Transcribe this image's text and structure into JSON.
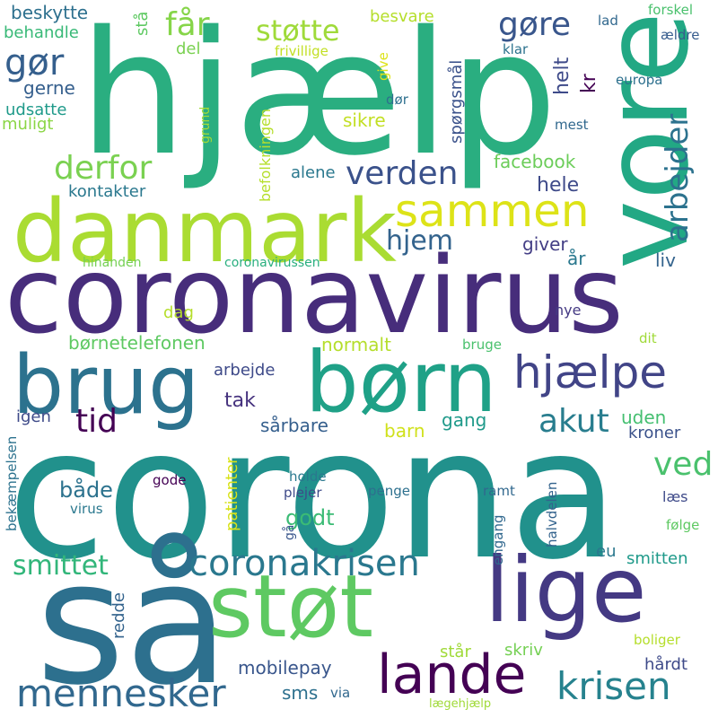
{
  "words": [
    {
      "text": "corona",
      "color": "#21918c"
    },
    {
      "text": "hjælp",
      "color": "#2aae80"
    },
    {
      "text": "coronavirus",
      "color": "#472d7b"
    },
    {
      "text": "så",
      "color": "#2d708e"
    },
    {
      "text": "danmark",
      "color": "#aadc32"
    },
    {
      "text": "vore",
      "color": "#22a884"
    },
    {
      "text": "brug",
      "color": "#2c728e"
    },
    {
      "text": "børn",
      "color": "#1fa187"
    },
    {
      "text": "lige",
      "color": "#443983"
    },
    {
      "text": "støt",
      "color": "#5ec962"
    },
    {
      "text": "lande",
      "color": "#440154"
    },
    {
      "text": "mennesker",
      "color": "#31688e"
    },
    {
      "text": "coronakrisen",
      "color": "#2a788e"
    },
    {
      "text": "hjælpe",
      "color": "#414487"
    },
    {
      "text": "sammen",
      "color": "#dde318"
    },
    {
      "text": "krisen",
      "color": "#26828e"
    },
    {
      "text": "verden",
      "color": "#3b528b"
    },
    {
      "text": "gøre",
      "color": "#39568c"
    },
    {
      "text": "gør",
      "color": "#355f8d"
    },
    {
      "text": "derfor",
      "color": "#7ad151"
    },
    {
      "text": "arbejder",
      "color": "#2c728e"
    },
    {
      "text": "får",
      "color": "#86d549"
    },
    {
      "text": "støtte",
      "color": "#9fda3a"
    },
    {
      "text": "hjem",
      "color": "#33638d"
    },
    {
      "text": "tid",
      "color": "#440154"
    },
    {
      "text": "akut",
      "color": "#287d8e"
    },
    {
      "text": "ved",
      "color": "#4ac16d"
    },
    {
      "text": "smittet",
      "color": "#32b67a"
    },
    {
      "text": "beskytte",
      "color": "#2d708e"
    },
    {
      "text": "behandle",
      "color": "#38b977"
    },
    {
      "text": "gerne",
      "color": "#355f8d"
    },
    {
      "text": "udsatte",
      "color": "#1f9a8a"
    },
    {
      "text": "muligt",
      "color": "#8bd646"
    },
    {
      "text": "kontakter",
      "color": "#2a788e"
    },
    {
      "text": "børnetelefonen",
      "color": "#5ec962"
    },
    {
      "text": "både",
      "color": "#2c728e"
    },
    {
      "text": "godt",
      "color": "#3bbb75"
    },
    {
      "text": "mobilepay",
      "color": "#39568c"
    },
    {
      "text": "sms",
      "color": "#2d708e"
    },
    {
      "text": "via",
      "color": "#31688e"
    },
    {
      "text": "facebook",
      "color": "#6ccd5a"
    },
    {
      "text": "hele",
      "color": "#3e4a89"
    },
    {
      "text": "giver",
      "color": "#433e85"
    },
    {
      "text": "år",
      "color": "#2a788e"
    },
    {
      "text": "liv",
      "color": "#33638d"
    },
    {
      "text": "nye",
      "color": "#443983"
    },
    {
      "text": "bruge",
      "color": "#4ac16d"
    },
    {
      "text": "dit",
      "color": "#a0da39"
    },
    {
      "text": "uden",
      "color": "#44bf70"
    },
    {
      "text": "kroner",
      "color": "#3b528b"
    },
    {
      "text": "normalt",
      "color": "#b5de2b"
    },
    {
      "text": "arbejde",
      "color": "#3e4a89"
    },
    {
      "text": "tak",
      "color": "#46327e"
    },
    {
      "text": "sårbare",
      "color": "#355f8d"
    },
    {
      "text": "gang",
      "color": "#1f9a8a"
    },
    {
      "text": "barn",
      "color": "#d0e11c"
    },
    {
      "text": "dag",
      "color": "#b5de2b"
    },
    {
      "text": "alene",
      "color": "#2a788e"
    },
    {
      "text": "sikre",
      "color": "#c2df23"
    },
    {
      "text": "helt",
      "color": "#3e4a89"
    },
    {
      "text": "kr",
      "color": "#440154"
    },
    {
      "text": "spørgsmål",
      "color": "#3b528b"
    },
    {
      "text": "besvare",
      "color": "#b5de2b"
    },
    {
      "text": "klar",
      "color": "#2c728e"
    },
    {
      "text": "lad",
      "color": "#31688e"
    },
    {
      "text": "forskel",
      "color": "#4ac16d"
    },
    {
      "text": "ældre",
      "color": "#365c8d"
    },
    {
      "text": "europa",
      "color": "#2d708e"
    },
    {
      "text": "mest",
      "color": "#31688e"
    },
    {
      "text": "dør",
      "color": "#2d708e"
    },
    {
      "text": "del",
      "color": "#7ad151"
    },
    {
      "text": "stå",
      "color": "#5ec962"
    },
    {
      "text": "frivillige",
      "color": "#c2df23"
    },
    {
      "text": "give",
      "color": "#dde318"
    },
    {
      "text": "befolkningen",
      "color": "#b5de2b"
    },
    {
      "text": "grund",
      "color": "#a0da39"
    },
    {
      "text": "hinanden",
      "color": "#75d054"
    },
    {
      "text": "coronavirussen",
      "color": "#29af7f"
    },
    {
      "text": "igen",
      "color": "#3e4a89"
    },
    {
      "text": "bekæmpelsen",
      "color": "#2c728e"
    },
    {
      "text": "virus",
      "color": "#2a788e"
    },
    {
      "text": "patienter",
      "color": "#d8e219"
    },
    {
      "text": "gode",
      "color": "#440154"
    },
    {
      "text": "holde",
      "color": "#2a788e"
    },
    {
      "text": "plejer",
      "color": "#3e4a89"
    },
    {
      "text": "gå",
      "color": "#39568c"
    },
    {
      "text": "penge",
      "color": "#2d708e"
    },
    {
      "text": "ramt",
      "color": "#31688e"
    },
    {
      "text": "halvdelen",
      "color": "#33638d"
    },
    {
      "text": "engang",
      "color": "#31688e"
    },
    {
      "text": "læs",
      "color": "#3e4a89"
    },
    {
      "text": "følge",
      "color": "#5ec962"
    },
    {
      "text": "eu",
      "color": "#2a788e"
    },
    {
      "text": "smitten",
      "color": "#1f9a8a"
    },
    {
      "text": "redde",
      "color": "#33638d"
    },
    {
      "text": "står",
      "color": "#a0da39"
    },
    {
      "text": "skriv",
      "color": "#75d054"
    },
    {
      "text": "boliger",
      "color": "#b5de2b"
    },
    {
      "text": "hårdt",
      "color": "#3e4a89"
    },
    {
      "text": "lægehjælp",
      "color": "#a0da39"
    }
  ]
}
